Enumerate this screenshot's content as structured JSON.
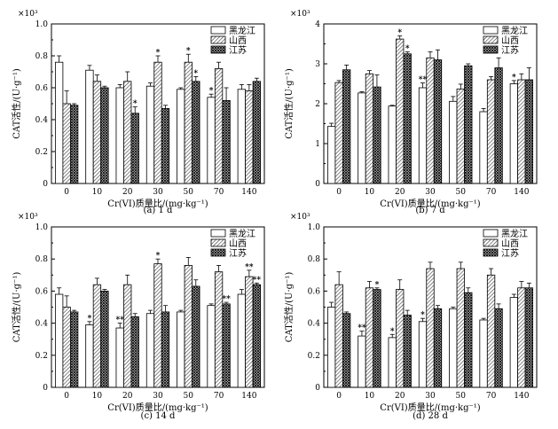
{
  "colors": {
    "axis": "#000000",
    "bar_heilongjiang": "#ffffff",
    "bar_shanxi_hatch": "#555555",
    "bar_jiangsu_cross": "#222222"
  },
  "legend": [
    "黑龙江",
    "山西",
    "江苏"
  ],
  "chart_data": [
    {
      "type": "bar",
      "caption": "(a) 1 d",
      "multiplier": "×10³",
      "ylabel": "CAT活性/(U·g⁻¹)",
      "xlabel": "Cr(VI)质量比/(mg·kg⁻¹)",
      "categories": [
        "0",
        "10",
        "20",
        "30",
        "50",
        "70",
        "140"
      ],
      "ylim": [
        0,
        1.0
      ],
      "yticks": [
        "0",
        "0.2",
        "0.4",
        "0.6",
        "0.8",
        "1.0"
      ],
      "series": [
        {
          "name": "黑龙江",
          "values": [
            0.76,
            0.71,
            0.6,
            0.61,
            0.59,
            0.54,
            0.59
          ],
          "errors": [
            0.04,
            0.03,
            0.02,
            0.02,
            0.01,
            0.02,
            0.03
          ],
          "marks": [
            "",
            "",
            "",
            "",
            "",
            "*",
            ""
          ]
        },
        {
          "name": "山西",
          "values": [
            0.5,
            0.64,
            0.64,
            0.76,
            0.76,
            0.72,
            0.58
          ],
          "errors": [
            0.08,
            0.04,
            0.06,
            0.04,
            0.05,
            0.04,
            0.04
          ],
          "marks": [
            "",
            "",
            "",
            "*",
            "*",
            "",
            ""
          ]
        },
        {
          "name": "江苏",
          "values": [
            0.49,
            0.6,
            0.44,
            0.47,
            0.64,
            0.52,
            0.64
          ],
          "errors": [
            0.01,
            0.01,
            0.04,
            0.02,
            0.03,
            0.08,
            0.02
          ],
          "marks": [
            "",
            "",
            "*",
            "",
            "*",
            "",
            ""
          ]
        }
      ]
    },
    {
      "type": "bar",
      "caption": "(b) 7 d",
      "multiplier": "×10³",
      "ylabel": "CAT活性/(U·g⁻¹)",
      "xlabel": "Cr(VI)质量比/(mg·kg⁻¹)",
      "categories": [
        "0",
        "10",
        "20",
        "30",
        "50",
        "70",
        "140"
      ],
      "ylim": [
        0,
        4
      ],
      "yticks": [
        "0",
        "1",
        "2",
        "3",
        "4"
      ],
      "series": [
        {
          "name": "黑龙江",
          "values": [
            1.43,
            2.27,
            1.94,
            2.4,
            2.06,
            1.8,
            2.5
          ],
          "errors": [
            0.08,
            0.03,
            0.02,
            0.12,
            0.12,
            0.08,
            0.08
          ],
          "marks": [
            "",
            "",
            "",
            "**",
            "",
            "",
            "*"
          ]
        },
        {
          "name": "山西",
          "values": [
            2.53,
            2.75,
            3.62,
            3.15,
            2.37,
            2.6,
            2.6
          ],
          "errors": [
            0.05,
            0.08,
            0.08,
            0.15,
            0.12,
            0.08,
            0.15
          ],
          "marks": [
            "",
            "",
            "*",
            "",
            "",
            "",
            ""
          ]
        },
        {
          "name": "江苏",
          "values": [
            2.85,
            2.42,
            3.25,
            3.1,
            2.95,
            2.9,
            2.6
          ],
          "errors": [
            0.12,
            0.3,
            0.05,
            0.25,
            0.05,
            0.25,
            0.3
          ],
          "marks": [
            "",
            "",
            "*",
            "",
            "",
            "",
            ""
          ]
        }
      ]
    },
    {
      "type": "bar",
      "caption": "(c) 14 d",
      "multiplier": "×10³",
      "ylabel": "CAT活性/(U·g⁻¹)",
      "xlabel": "Cr(VI)质量比/(mg·kg⁻¹)",
      "categories": [
        "0",
        "10",
        "20",
        "30",
        "50",
        "70",
        "140"
      ],
      "ylim": [
        0,
        1.0
      ],
      "yticks": [
        "0",
        "0.2",
        "0.4",
        "0.6",
        "0.8",
        "1.0"
      ],
      "series": [
        {
          "name": "黑龙江",
          "values": [
            0.58,
            0.39,
            0.37,
            0.46,
            0.47,
            0.51,
            0.58
          ],
          "errors": [
            0.04,
            0.02,
            0.03,
            0.02,
            0.01,
            0.01,
            0.03
          ],
          "marks": [
            "",
            "*",
            "**",
            "",
            "",
            "",
            ""
          ]
        },
        {
          "name": "山西",
          "values": [
            0.5,
            0.64,
            0.64,
            0.77,
            0.76,
            0.72,
            0.69
          ],
          "errors": [
            0.07,
            0.04,
            0.06,
            0.03,
            0.05,
            0.04,
            0.04
          ],
          "marks": [
            "",
            "",
            "",
            "*",
            "",
            "",
            "**"
          ]
        },
        {
          "name": "江苏",
          "values": [
            0.47,
            0.6,
            0.44,
            0.47,
            0.63,
            0.52,
            0.64
          ],
          "errors": [
            0.01,
            0.01,
            0.02,
            0.04,
            0.04,
            0.01,
            0.01
          ],
          "marks": [
            "",
            "",
            "",
            "",
            "",
            "**",
            "**"
          ]
        }
      ]
    },
    {
      "type": "bar",
      "caption": "(d) 28 d",
      "multiplier": "×10³",
      "ylabel": "CAT活性/(U·g⁻¹)",
      "xlabel": "Cr(VI)质量比/(mg·kg⁻¹)",
      "categories": [
        "0",
        "10",
        "20",
        "30",
        "50",
        "70",
        "140"
      ],
      "ylim": [
        0,
        1.0
      ],
      "yticks": [
        "0",
        "0.2",
        "0.4",
        "0.6",
        "0.8",
        "1.0"
      ],
      "series": [
        {
          "name": "黑龙江",
          "values": [
            0.5,
            0.32,
            0.31,
            0.41,
            0.49,
            0.42,
            0.56
          ],
          "errors": [
            0.03,
            0.03,
            0.02,
            0.02,
            0.01,
            0.01,
            0.02
          ],
          "marks": [
            "",
            "**",
            "*",
            "*",
            "",
            "",
            ""
          ]
        },
        {
          "name": "山西",
          "values": [
            0.64,
            0.62,
            0.61,
            0.74,
            0.74,
            0.7,
            0.62
          ],
          "errors": [
            0.08,
            0.04,
            0.06,
            0.04,
            0.04,
            0.04,
            0.04
          ],
          "marks": [
            "",
            "",
            "",
            "",
            "",
            "",
            ""
          ]
        },
        {
          "name": "江苏",
          "values": [
            0.46,
            0.61,
            0.45,
            0.49,
            0.59,
            0.49,
            0.62
          ],
          "errors": [
            0.01,
            0.01,
            0.03,
            0.02,
            0.03,
            0.03,
            0.03
          ],
          "marks": [
            "",
            "*",
            "",
            "",
            "",
            "",
            ""
          ]
        }
      ]
    }
  ]
}
